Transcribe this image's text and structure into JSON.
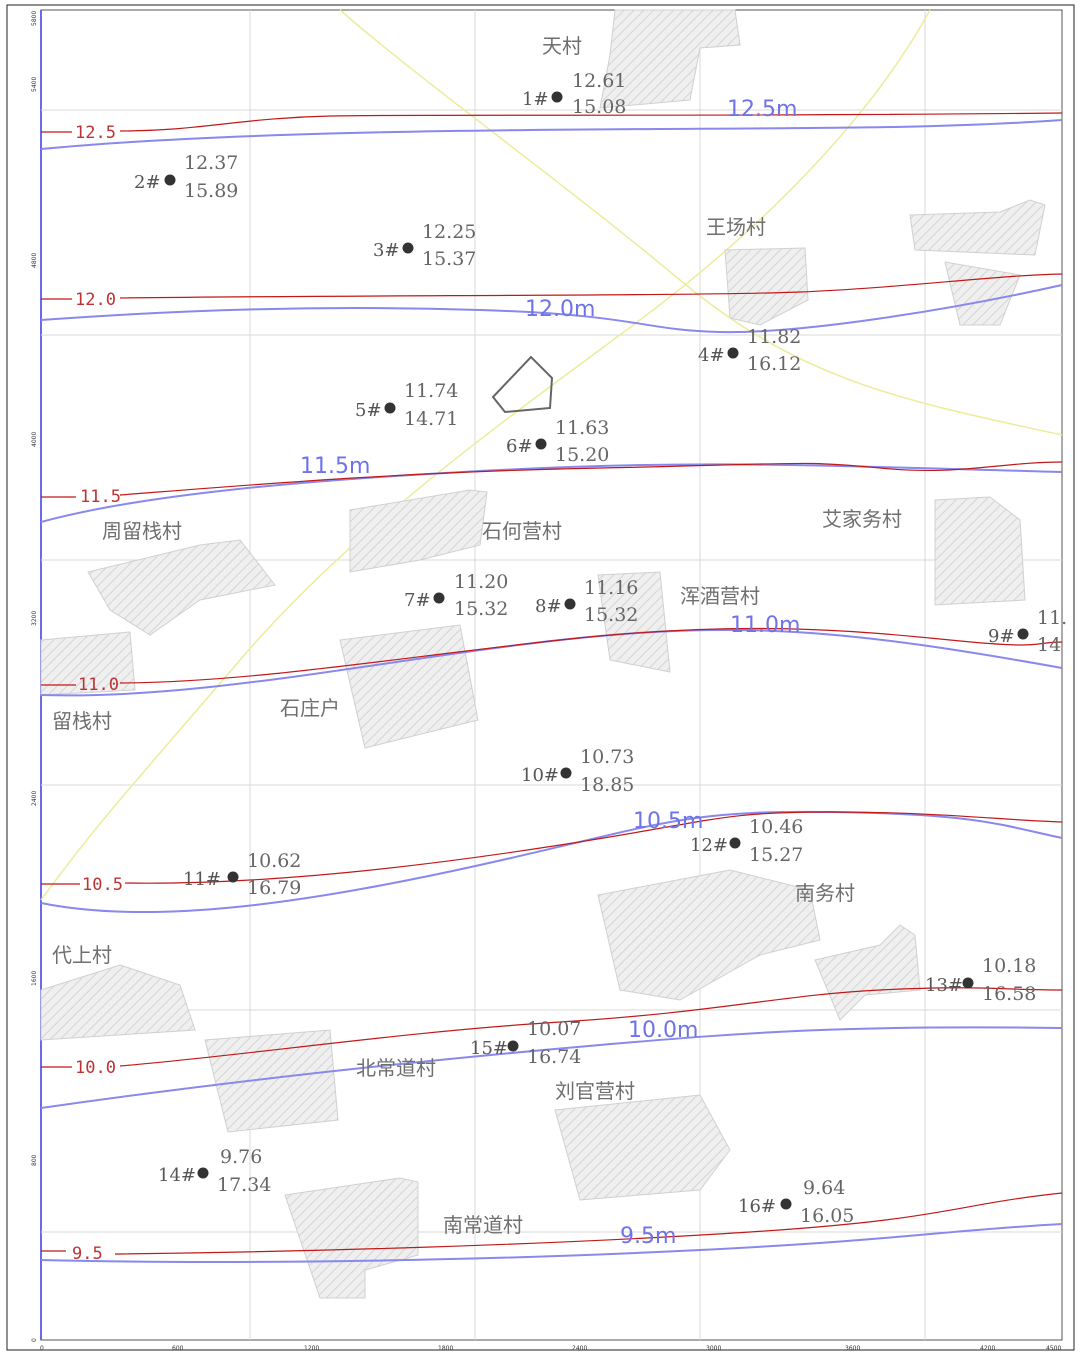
{
  "colors": {
    "grid": "#d9d9d9",
    "red_contour": "#c21818",
    "blue_contour": "#8888ee",
    "village_fill": "#e3e3e3",
    "well_dot": "#333333",
    "road": "#ecec9a"
  },
  "axes": {
    "x_ticks": [
      "0",
      "600",
      "1200",
      "1800",
      "2400",
      "3000",
      "3600",
      "4200",
      "4500"
    ],
    "y_ticks": [
      "5800",
      "5400",
      "4800",
      "4000",
      "3200",
      "2400",
      "1600",
      "800",
      "0"
    ]
  },
  "villages": [
    {
      "id": "tiancun",
      "name": "天村"
    },
    {
      "id": "wangchangcun",
      "name": "王场村"
    },
    {
      "id": "zhouliujiancun",
      "name": "周留栈村"
    },
    {
      "id": "shiheyingcun",
      "name": "石何营村"
    },
    {
      "id": "aijiawucun",
      "name": "艾家务村"
    },
    {
      "id": "hunjiuyingcun",
      "name": "浑酒营村"
    },
    {
      "id": "shizhuanghu",
      "name": "石庄户"
    },
    {
      "id": "liujiancun-left",
      "name": "留栈村"
    },
    {
      "id": "nanwucun",
      "name": "南务村"
    },
    {
      "id": "daishangcun",
      "name": "代上村"
    },
    {
      "id": "beichangdaocun",
      "name": "北常道村"
    },
    {
      "id": "liuguanyingcun",
      "name": "刘官营村"
    },
    {
      "id": "nanchangdaocun",
      "name": "南常道村"
    }
  ],
  "wells": [
    {
      "id": "1#",
      "v1": "12.61",
      "v2": "15.08"
    },
    {
      "id": "2#",
      "v1": "12.37",
      "v2": "15.89"
    },
    {
      "id": "3#",
      "v1": "12.25",
      "v2": "15.37"
    },
    {
      "id": "4#",
      "v1": "11.82",
      "v2": "16.12"
    },
    {
      "id": "5#",
      "v1": "11.74",
      "v2": "14.71"
    },
    {
      "id": "6#",
      "v1": "11.63",
      "v2": "15.20"
    },
    {
      "id": "7#",
      "v1": "11.20",
      "v2": "15.32"
    },
    {
      "id": "8#",
      "v1": "11.16",
      "v2": "15.32"
    },
    {
      "id": "9#",
      "v1": "11.",
      "v2": "14"
    },
    {
      "id": "10#",
      "v1": "10.73",
      "v2": "18.85"
    },
    {
      "id": "11#",
      "v1": "10.62",
      "v2": "16.79"
    },
    {
      "id": "12#",
      "v1": "10.46",
      "v2": "15.27"
    },
    {
      "id": "13#",
      "v1": "10.18",
      "v2": "16.58"
    },
    {
      "id": "14#",
      "v1": "9.76",
      "v2": "17.34"
    },
    {
      "id": "15#",
      "v1": "10.07",
      "v2": "16.74"
    },
    {
      "id": "16#",
      "v1": "9.64",
      "v2": "16.05"
    }
  ],
  "contours_red": [
    {
      "label": "12.5"
    },
    {
      "label": "12.0"
    },
    {
      "label": "11.5"
    },
    {
      "label": "11.0"
    },
    {
      "label": "10.5"
    },
    {
      "label": "10.0"
    },
    {
      "label": "9.5"
    }
  ],
  "contours_blue": [
    {
      "label": "12.5m"
    },
    {
      "label": "12.0m"
    },
    {
      "label": "11.5m"
    },
    {
      "label": "11.0m"
    },
    {
      "label": "10.5m"
    },
    {
      "label": "10.0m"
    },
    {
      "label": "9.5m"
    }
  ]
}
